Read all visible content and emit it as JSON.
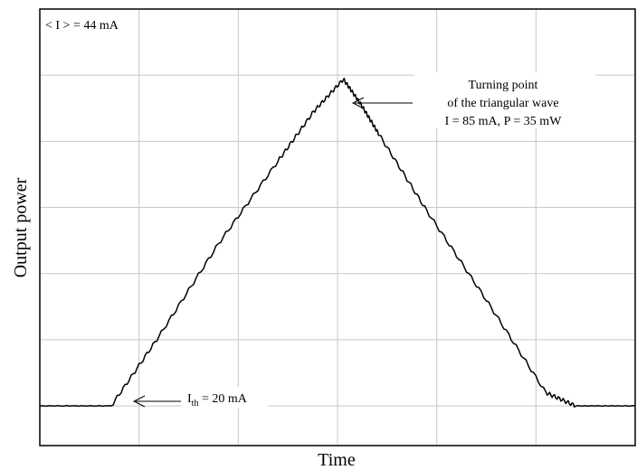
{
  "chart_data": {
    "type": "line",
    "title": "",
    "xlabel": "Time",
    "ylabel": "Output power",
    "xlim": [
      0,
      10
    ],
    "ylim": [
      -0.6,
      6
    ],
    "grid": true,
    "x_ticks_count": 6,
    "y_ticks_count": 6,
    "line_color": "#000000",
    "grid_color": "#c8c8c8",
    "series": [
      {
        "name": "",
        "x": [
          0,
          1.2,
          2.0,
          3.0,
          4.0,
          4.6,
          5.1,
          5.4,
          5.7,
          6.5,
          7.5,
          8.5,
          9.0,
          10.0
        ],
        "y": [
          0,
          0,
          1.05,
          2.45,
          3.7,
          4.45,
          4.94,
          4.55,
          4.1,
          2.95,
          1.6,
          0.2,
          0,
          0
        ]
      }
    ],
    "annotations": {
      "mean_current": "< I > = 44 mA",
      "threshold_prefix": "I",
      "threshold_subscript": "th",
      "threshold_value": " = 20 mA",
      "turning_line1": "Turning point",
      "turning_line2": "of the triangular wave",
      "turning_line3": "I = 85 mA, P = 35 mW"
    }
  }
}
